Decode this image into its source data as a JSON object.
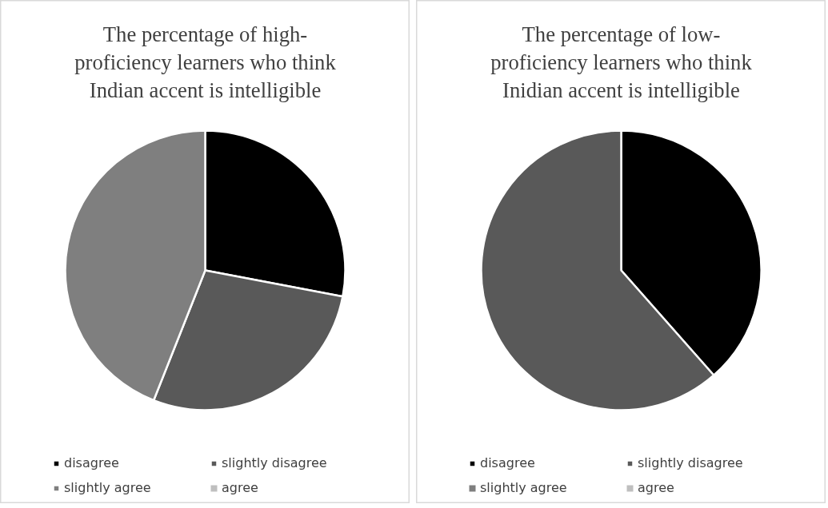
{
  "chart_data": [
    {
      "type": "pie",
      "title": "The percentage of high-proficiency learners who think Indian accent is intelligible",
      "categories": [
        "disagree",
        "slightly disagree",
        "slightly agree",
        "agree"
      ],
      "values": [
        28,
        28,
        44,
        0
      ],
      "colors": [
        "#000000",
        "#595959",
        "#7f7f7f",
        "#bfbfbf"
      ],
      "legend": "bottom"
    },
    {
      "type": "pie",
      "title": "The percentage of low-proficiency learners who think Inidian accent is intelligible",
      "categories": [
        "disagree",
        "slightly disagree",
        "slightly agree",
        "agree"
      ],
      "values": [
        38.5,
        61.5,
        0,
        0
      ],
      "colors": [
        "#000000",
        "#595959",
        "#7f7f7f",
        "#bfbfbf"
      ],
      "legend": "bottom"
    }
  ]
}
